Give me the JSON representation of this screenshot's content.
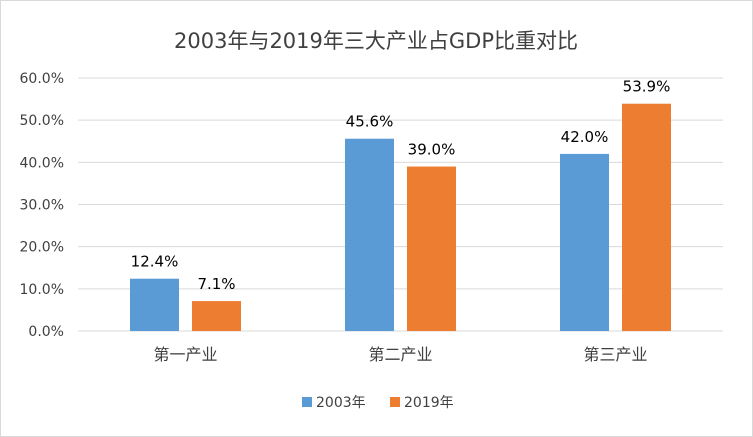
{
  "chart_data": {
    "type": "bar",
    "title": "2003年与2019年三大产业占GDP比重对比",
    "xlabel": "",
    "ylabel": "",
    "categories": [
      "第一产业",
      "第二产业",
      "第三产业"
    ],
    "series": [
      {
        "name": "2003年",
        "values": [
          12.4,
          45.6,
          42.0
        ],
        "labels": [
          "12.4%",
          "45.6%",
          "42.0%"
        ],
        "color": "#5B9BD5"
      },
      {
        "name": "2019年",
        "values": [
          7.1,
          39.0,
          53.9
        ],
        "labels": [
          "7.1%",
          "39.0%",
          "53.9%"
        ],
        "color": "#ED7D31"
      }
    ],
    "ylim": [
      0,
      60
    ],
    "yticks": [
      0,
      10,
      20,
      30,
      40,
      50,
      60
    ],
    "ytick_labels": [
      "0.0%",
      "10.0%",
      "20.0%",
      "30.0%",
      "40.0%",
      "50.0%",
      "60.0%"
    ],
    "grid": true,
    "legend": "bottom-center"
  }
}
